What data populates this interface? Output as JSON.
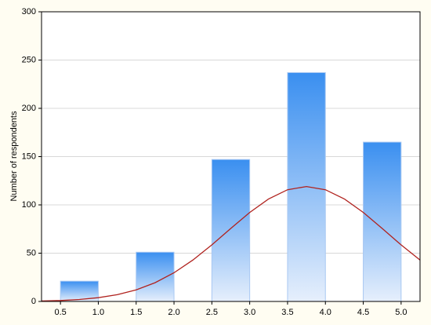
{
  "chart_data": {
    "type": "histogram",
    "ylabel": "Number of respondents",
    "bins": [
      0.5,
      1.0,
      1.5,
      2.0,
      2.5,
      3.0,
      3.5,
      4.0,
      4.5,
      5.0
    ],
    "counts": [
      21,
      0,
      51,
      0,
      147,
      0,
      237,
      0,
      165
    ],
    "color": "#3a8ff0",
    "curve": {
      "color": "#b0221e",
      "x": [
        0.25,
        0.5,
        0.75,
        1.0,
        1.25,
        1.5,
        1.75,
        2.0,
        2.25,
        2.5,
        2.75,
        3.0,
        3.25,
        3.5,
        3.75,
        4.0,
        4.25,
        4.5,
        4.75,
        5.0,
        5.25
      ],
      "values": [
        0.46,
        0.99,
        2.0,
        3.9,
        7.0,
        12.0,
        19.4,
        29.7,
        42.9,
        58.6,
        75.6,
        92.2,
        106.2,
        115.7,
        119,
        115.7,
        106.2,
        92.2,
        75.6,
        58.6,
        42.9
      ]
    },
    "xlim": [
      0.25,
      5.25
    ],
    "xticks": [
      0.5,
      {
        "value": 1,
        "label": "1.0"
      },
      1.5,
      {
        "value": 2,
        "label": "2.0"
      },
      2.5,
      {
        "value": 3,
        "label": "3.0"
      },
      3.5,
      {
        "value": 4,
        "label": "4.0"
      },
      4.5,
      {
        "value": 5,
        "label": "5.0"
      }
    ],
    "ylim": [
      0,
      300
    ],
    "yticks": [
      0,
      50,
      100,
      150,
      200,
      250,
      300
    ],
    "grid": true
  }
}
